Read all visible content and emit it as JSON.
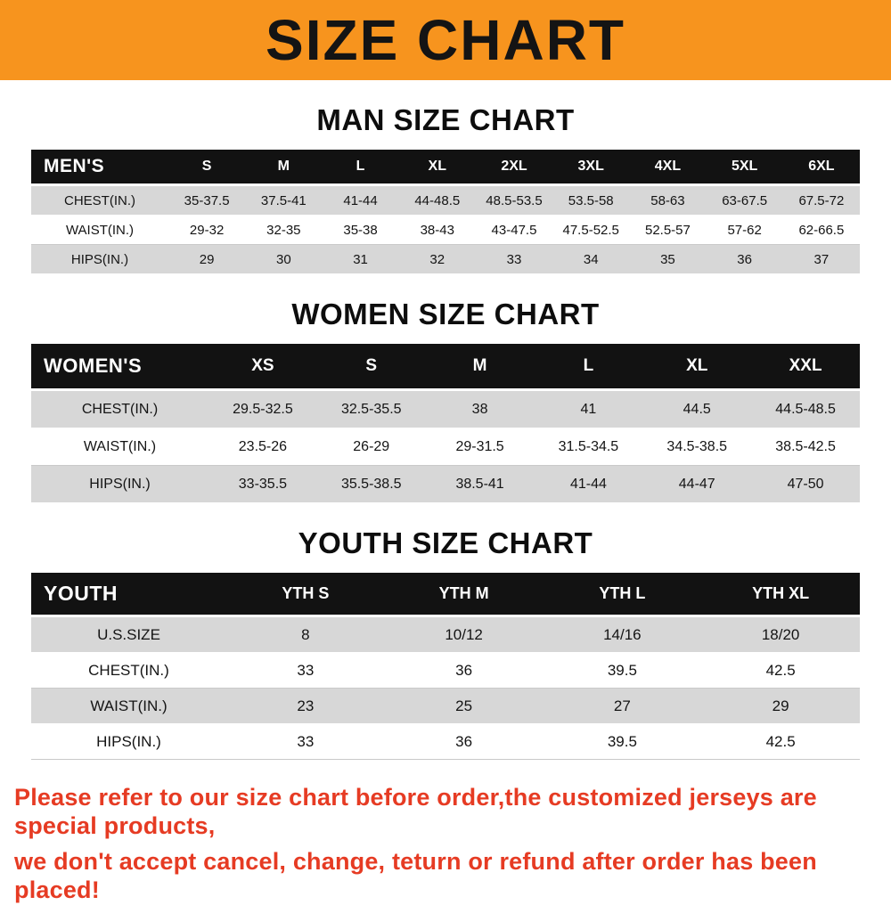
{
  "banner": {
    "title": "SIZE CHART",
    "background_color": "#f7941e"
  },
  "colors": {
    "header_row_bg": "#121212",
    "shaded_row_bg": "#d7d7d7",
    "note_text": "#e63b23"
  },
  "sections": [
    {
      "heading": "MAN SIZE CHART",
      "table": {
        "header": [
          "MEN'S",
          "S",
          "M",
          "L",
          "XL",
          "2XL",
          "3XL",
          "4XL",
          "5XL",
          "6XL"
        ],
        "rows": [
          [
            "CHEST(IN.)",
            "35-37.5",
            "37.5-41",
            "41-44",
            "44-48.5",
            "48.5-53.5",
            "53.5-58",
            "58-63",
            "63-67.5",
            "67.5-72"
          ],
          [
            "WAIST(IN.)",
            "29-32",
            "32-35",
            "35-38",
            "38-43",
            "43-47.5",
            "47.5-52.5",
            "52.5-57",
            "57-62",
            "62-66.5"
          ],
          [
            "HIPS(IN.)",
            "29",
            "30",
            "31",
            "32",
            "33",
            "34",
            "35",
            "36",
            "37"
          ]
        ]
      }
    },
    {
      "heading": "WOMEN SIZE CHART",
      "table": {
        "header": [
          "WOMEN'S",
          "XS",
          "S",
          "M",
          "L",
          "XL",
          "XXL"
        ],
        "rows": [
          [
            "CHEST(IN.)",
            "29.5-32.5",
            "32.5-35.5",
            "38",
            "41",
            "44.5",
            "44.5-48.5"
          ],
          [
            "WAIST(IN.)",
            "23.5-26",
            "26-29",
            "29-31.5",
            "31.5-34.5",
            "34.5-38.5",
            "38.5-42.5"
          ],
          [
            "HIPS(IN.)",
            "33-35.5",
            "35.5-38.5",
            "38.5-41",
            "41-44",
            "44-47",
            "47-50"
          ]
        ]
      }
    },
    {
      "heading": "YOUTH SIZE CHART",
      "table": {
        "header": [
          "YOUTH",
          "YTH S",
          "YTH M",
          "YTH L",
          "YTH XL"
        ],
        "rows": [
          [
            "U.S.SIZE",
            "8",
            "10/12",
            "14/16",
            "18/20"
          ],
          [
            "CHEST(IN.)",
            "33",
            "36",
            "39.5",
            "42.5"
          ],
          [
            "WAIST(IN.)",
            "23",
            "25",
            "27",
            "29"
          ],
          [
            "HIPS(IN.)",
            "33",
            "36",
            "39.5",
            "42.5"
          ]
        ]
      }
    }
  ],
  "note": {
    "text_line1": "Please refer to our size chart before order,the customized jerseys are special products,",
    "text_line2": "we don't accept cancel, change, teturn or refund after order has been placed!"
  }
}
